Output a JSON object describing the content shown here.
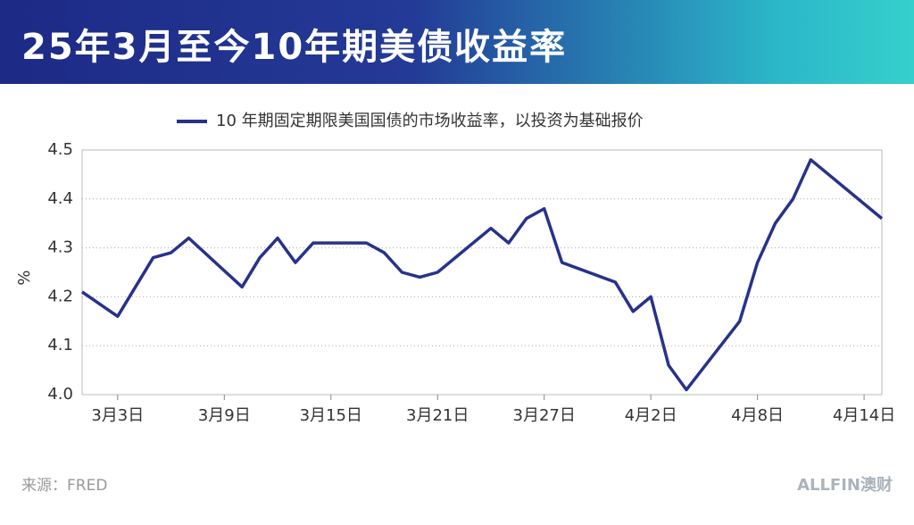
{
  "header": {
    "title": "25年3月至今10年期美债收益率"
  },
  "chart_data": {
    "type": "line",
    "ylabel": "%",
    "x": [
      "03-01",
      "03-03",
      "03-05",
      "03-06",
      "03-07",
      "03-10",
      "03-11",
      "03-12",
      "03-13",
      "03-14",
      "03-17",
      "03-18",
      "03-19",
      "03-20",
      "03-21",
      "03-24",
      "03-25",
      "03-26",
      "03-27",
      "03-28",
      "03-31",
      "04-01",
      "04-02",
      "04-03",
      "04-04",
      "04-07",
      "04-08",
      "04-09",
      "04-10",
      "04-11",
      "04-15"
    ],
    "series": [
      {
        "name": "10 年期固定期限美国国债的市场收益率，以投资为基础报价",
        "color": "#27328a",
        "values": [
          4.21,
          4.16,
          4.28,
          4.29,
          4.32,
          4.22,
          4.28,
          4.32,
          4.27,
          4.31,
          4.31,
          4.29,
          4.25,
          4.24,
          4.25,
          4.34,
          4.31,
          4.36,
          4.38,
          4.27,
          4.23,
          4.17,
          4.2,
          4.06,
          4.01,
          4.15,
          4.27,
          4.35,
          4.4,
          4.48,
          4.36
        ]
      }
    ],
    "xlim": [
      "03-01",
      "04-15"
    ],
    "xticks": [
      {
        "value": "03-03",
        "label": "3月3日"
      },
      {
        "value": "03-09",
        "label": "3月9日"
      },
      {
        "value": "03-15",
        "label": "3月15日"
      },
      {
        "value": "03-21",
        "label": "3月21日"
      },
      {
        "value": "03-27",
        "label": "3月27日"
      },
      {
        "value": "04-02",
        "label": "4月2日"
      },
      {
        "value": "04-08",
        "label": "4月8日"
      },
      {
        "value": "04-14",
        "label": "4月14日"
      }
    ],
    "ylim": [
      4.0,
      4.5
    ],
    "yticks": [
      {
        "value": 4.0,
        "label": "4.0"
      },
      4.1,
      4.2,
      4.3,
      4.4,
      4.5
    ],
    "grid": true,
    "legend": "top"
  },
  "footer": {
    "source": "来源：FRED",
    "brand": "ALLFIN澳财"
  }
}
